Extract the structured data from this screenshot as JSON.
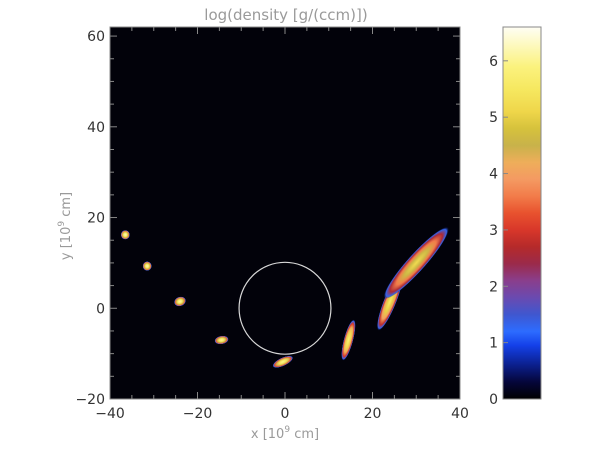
{
  "chart_data": {
    "type": "heatmap",
    "title": "log(density [g/(ccm)])",
    "xlabel_main": "x [10",
    "xlabel_exp": "9",
    "xlabel_unit": " cm]",
    "ylabel_main": "y [10",
    "ylabel_exp": "9",
    "ylabel_unit": " cm]",
    "xlim": [
      -40,
      40
    ],
    "ylim": [
      -20,
      62
    ],
    "xticks": [
      -40,
      -20,
      0,
      20,
      40
    ],
    "xtick_labels": [
      "−40",
      "−20",
      "0",
      "20",
      "40"
    ],
    "yticks": [
      -20,
      0,
      20,
      40,
      60
    ],
    "ytick_labels": [
      "−20",
      "0",
      "20",
      "40",
      "60"
    ],
    "background_color": "#02020a",
    "circle": {
      "cx": 0,
      "cy": 0,
      "r": 10.5,
      "color": "#d8d8d8"
    },
    "blobs": [
      {
        "x": -36.5,
        "y": 16.2,
        "rx": 0.9,
        "ry": 0.9,
        "angle": 0,
        "peak": 6.3
      },
      {
        "x": -31.5,
        "y": 9.3,
        "rx": 0.9,
        "ry": 0.9,
        "angle": 0,
        "peak": 6.3
      },
      {
        "x": -24.0,
        "y": 1.5,
        "rx": 1.2,
        "ry": 0.9,
        "angle": 20,
        "peak": 6.2
      },
      {
        "x": -14.5,
        "y": -7.0,
        "rx": 1.4,
        "ry": 0.8,
        "angle": 10,
        "peak": 6.1
      },
      {
        "x": -0.5,
        "y": -11.8,
        "rx": 2.2,
        "ry": 0.8,
        "angle": 25,
        "peak": 6.0
      },
      {
        "x": 14.5,
        "y": -7.0,
        "rx": 4.2,
        "ry": 0.9,
        "angle": 75,
        "peak": 5.8
      },
      {
        "x": 24.0,
        "y": 1.5,
        "rx": 6.2,
        "ry": 1.2,
        "angle": 68,
        "peak": 5.6
      },
      {
        "x": 30.0,
        "y": 10.0,
        "rx": 9.5,
        "ry": 1.7,
        "angle": 48,
        "peak": 5.2
      }
    ],
    "colorbar": {
      "range": [
        0,
        6.6
      ],
      "ticks": [
        0,
        1,
        2,
        3,
        4,
        5,
        6
      ],
      "tick_labels": [
        "0",
        "1",
        "2",
        "3",
        "4",
        "5",
        "6"
      ],
      "stops": [
        [
          0.0,
          "#000000"
        ],
        [
          0.3,
          "#05063a"
        ],
        [
          0.6,
          "#0b1f8c"
        ],
        [
          0.95,
          "#1440e8"
        ],
        [
          1.2,
          "#2d6cff"
        ],
        [
          1.5,
          "#3f57cf"
        ],
        [
          1.8,
          "#6a4ab0"
        ],
        [
          2.1,
          "#8a3e8c"
        ],
        [
          2.4,
          "#9b2a4a"
        ],
        [
          2.7,
          "#b52a2a"
        ],
        [
          3.0,
          "#d8372a"
        ],
        [
          3.3,
          "#e8522e"
        ],
        [
          3.6,
          "#f27c4a"
        ],
        [
          3.9,
          "#f49a62"
        ],
        [
          4.2,
          "#eeae5a"
        ],
        [
          4.5,
          "#c8b24a"
        ],
        [
          4.8,
          "#d6c23c"
        ],
        [
          5.1,
          "#efd64a"
        ],
        [
          5.5,
          "#f6e860"
        ],
        [
          5.9,
          "#fbf27e"
        ],
        [
          6.3,
          "#fdf9c2"
        ],
        [
          6.6,
          "#fffef4"
        ]
      ]
    }
  }
}
